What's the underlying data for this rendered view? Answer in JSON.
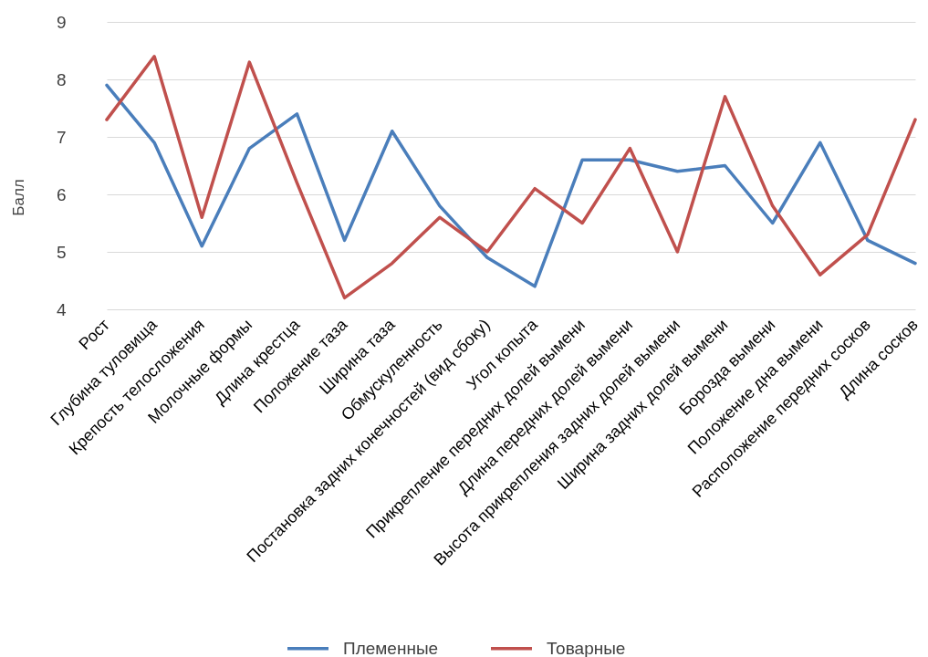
{
  "chart_data": {
    "type": "line",
    "ylabel": "Балл",
    "categories": [
      "Рост",
      "Глубина туловища",
      "Крепость телосложения",
      "Молочные формы",
      "Длина крестца",
      "Положение таза",
      "Ширина таза",
      "Обмускуленность",
      "Постановка задних конечностей (вид сбоку)",
      "Угол копыта",
      "Прикрепление передних долей вымени",
      "Длина передних долей вымени",
      "Высота прикрепления задних долей вымени",
      "Ширина задних долей вымени",
      "Борозда вымени",
      "Положение дна вымени",
      "Расположение передних сосков",
      "Длина сосков"
    ],
    "series": [
      {
        "name": "Племенные",
        "color": "#4a7ebb",
        "values": [
          7.9,
          6.9,
          5.1,
          6.8,
          7.4,
          5.2,
          7.1,
          5.8,
          4.9,
          4.4,
          6.6,
          6.6,
          6.4,
          6.5,
          5.5,
          6.9,
          5.2,
          4.8
        ]
      },
      {
        "name": "Товарные",
        "color": "#c0504d",
        "values": [
          7.3,
          8.4,
          5.6,
          8.3,
          6.2,
          4.2,
          4.8,
          5.6,
          5.0,
          6.1,
          5.5,
          6.8,
          5.0,
          7.7,
          5.8,
          4.6,
          5.3,
          7.3
        ]
      }
    ],
    "ylim": [
      4,
      9
    ],
    "yticks": [
      4,
      5,
      6,
      7,
      8,
      9
    ],
    "grid": "y",
    "legend": "bottom"
  }
}
